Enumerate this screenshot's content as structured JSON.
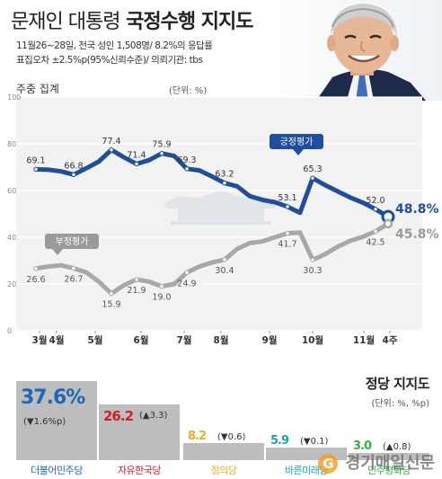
{
  "header": {
    "title_normal": "문재인 대통령",
    "title_bold": "국정수행 지지도",
    "meta_line1": "11월26~28일, 전국 성인 1,508명/ 8.2%의 응답률",
    "meta_line2": "표집오차 ±2.5%p(95%신뢰수준)/ 의뢰기관: tbs"
  },
  "section_label": "주중 집계",
  "unit_label": "(단위: %)",
  "chart_data": {
    "type": "line",
    "title": "",
    "ylim": [
      0,
      100
    ],
    "y_ticks": [
      "100",
      "80",
      "60",
      "40",
      "20",
      "0"
    ],
    "x_month_labels": [
      "3월",
      "4월",
      "5월",
      "6월",
      "7월",
      "8월",
      "9월",
      "10월",
      "11월",
      "4주"
    ],
    "series": [
      {
        "name": "긍정평가",
        "color": "#1f4e9e",
        "values": [
          69.1,
          68.9,
          68.2,
          66.8,
          69.5,
          72.4,
          77.4,
          74.2,
          71.4,
          73.0,
          75.9,
          74.8,
          69.3,
          68.6,
          66.0,
          63.2,
          61.8,
          57.6,
          56.0,
          55.0,
          53.1,
          50.5,
          65.3,
          62.3,
          59.6,
          57.0,
          54.8,
          52.0,
          48.8
        ],
        "labels": {
          "0": "69.1",
          "3": "66.8",
          "6": "77.4",
          "8": "71.4",
          "10": "75.9",
          "12": "69.3",
          "15": "63.2",
          "20": "53.1",
          "22": "65.3",
          "27": "52.0",
          "28": "48.8"
        }
      },
      {
        "name": "부정평가",
        "color": "#a8a8a8",
        "values": [
          26.6,
          27.5,
          28.0,
          26.7,
          25.0,
          21.0,
          15.9,
          19.5,
          21.9,
          21.0,
          19.0,
          20.0,
          24.9,
          27.5,
          29.2,
          30.4,
          35.0,
          37.5,
          38.2,
          40.0,
          41.7,
          42.0,
          30.3,
          32.8,
          36.0,
          38.5,
          40.2,
          42.5,
          45.8
        ],
        "labels": {
          "0": "26.6",
          "3": "26.7",
          "6": "15.9",
          "8": "21.9",
          "10": "19.0",
          "12": "24.9",
          "15": "30.4",
          "20": "41.7",
          "22": "30.3",
          "27": "42.5",
          "28": "45.8"
        }
      }
    ]
  },
  "latest": {
    "positive": "48.8%",
    "negative": "45.8%"
  },
  "party": {
    "title": "정당 지지도",
    "unit": "(단위: %, %p)",
    "items": [
      {
        "name": "더불어민주당",
        "value": 37.6,
        "value_text": "37.6%",
        "change": "(▼1.6%p)",
        "color": "#1f66b8"
      },
      {
        "name": "자유한국당",
        "value": 26.2,
        "value_text": "26.2",
        "change": "(▲3.3)",
        "color": "#d01e2d"
      },
      {
        "name": "정의당",
        "value": 8.2,
        "value_text": "8.2",
        "change": "(▼0.6)",
        "color": "#e3b11c"
      },
      {
        "name": "바른미래당",
        "value": 5.9,
        "value_text": "5.9",
        "change": "(▼0.1)",
        "color": "#16a6b6"
      },
      {
        "name": "민주평화당",
        "value": 3.0,
        "value_text": "3.0",
        "change": "(▲0.8)",
        "color": "#3aae49"
      }
    ]
  },
  "watermark": {
    "logo_letter": "G",
    "text": "경기매일신문"
  }
}
